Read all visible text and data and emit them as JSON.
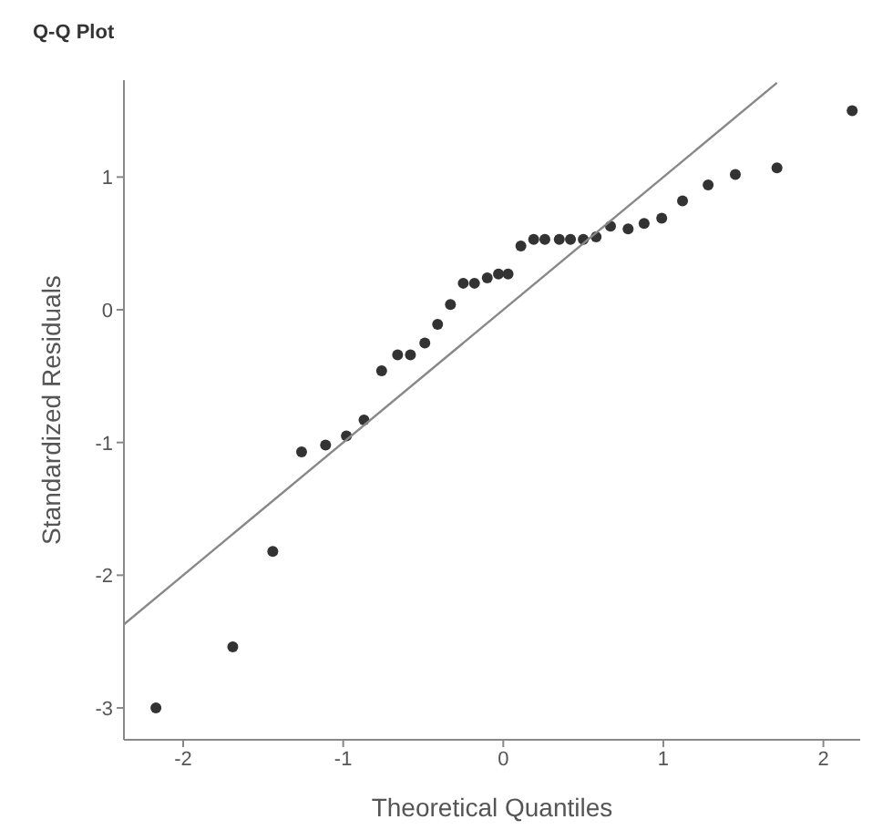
{
  "chart_data": {
    "type": "scatter",
    "title": "Q-Q Plot",
    "xlabel": "Theoretical Quantiles",
    "ylabel": "Standardized Residuals",
    "xlim": [
      -2.37,
      2.23
    ],
    "ylim": [
      -3.24,
      1.73
    ],
    "xticks": [
      -2,
      -1,
      0,
      1,
      2
    ],
    "yticks": [
      -3,
      -2,
      -1,
      0,
      1
    ],
    "marker": "circle",
    "series": [
      {
        "color": "#333333",
        "x": [
          -2.17,
          -1.69,
          -1.44,
          -1.26,
          -1.11,
          -0.98,
          -0.87,
          -0.76,
          -0.66,
          -0.58,
          -0.49,
          -0.41,
          -0.33,
          -0.25,
          -0.18,
          -0.1,
          -0.03,
          0.03,
          0.11,
          0.19,
          0.26,
          0.35,
          0.42,
          0.5,
          0.58,
          0.67,
          0.78,
          0.88,
          0.99,
          1.12,
          1.28,
          1.45,
          1.71,
          2.18
        ],
        "values": [
          -3.0,
          -2.54,
          -1.82,
          -1.07,
          -1.02,
          -0.95,
          -0.83,
          -0.46,
          -0.34,
          -0.34,
          -0.25,
          -0.11,
          0.04,
          0.2,
          0.2,
          0.24,
          0.27,
          0.27,
          0.48,
          0.53,
          0.53,
          0.53,
          0.53,
          0.53,
          0.55,
          0.63,
          0.61,
          0.65,
          0.69,
          0.82,
          0.94,
          1.02,
          1.07,
          1.5
        ]
      },
      {
        "type": "line",
        "color": "#888888",
        "line_style": "solid",
        "marker": "none",
        "x": [
          -2.37,
          1.71
        ],
        "values": [
          -2.37,
          1.71
        ]
      }
    ]
  }
}
